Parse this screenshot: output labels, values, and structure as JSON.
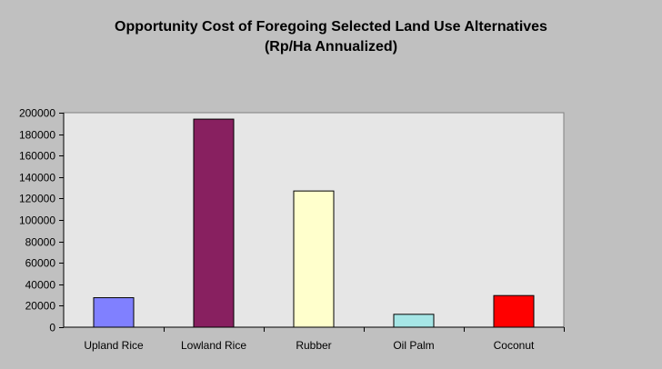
{
  "chart_data": {
    "type": "bar",
    "title": "Opportunity Cost of Foregoing Selected Land Use Alternatives",
    "subtitle": "(Rp/Ha Annualized)",
    "categories": [
      "Upland Rice",
      "Lowland Rice",
      "Rubber",
      "Oil Palm",
      "Coconut"
    ],
    "values": [
      27500,
      194000,
      127000,
      12000,
      29500
    ],
    "colors": [
      "#8080ff",
      "#882060",
      "#ffffcc",
      "#a6e6e6",
      "#ff0000"
    ],
    "ylim": [
      0,
      200000
    ],
    "yticks": [
      0,
      20000,
      40000,
      60000,
      80000,
      100000,
      120000,
      140000,
      160000,
      180000,
      200000
    ],
    "xlabel": "",
    "ylabel": "",
    "grid": false,
    "legend": "none",
    "plot_background": "#e6e6e6",
    "page_background": "#c0c0c0"
  }
}
